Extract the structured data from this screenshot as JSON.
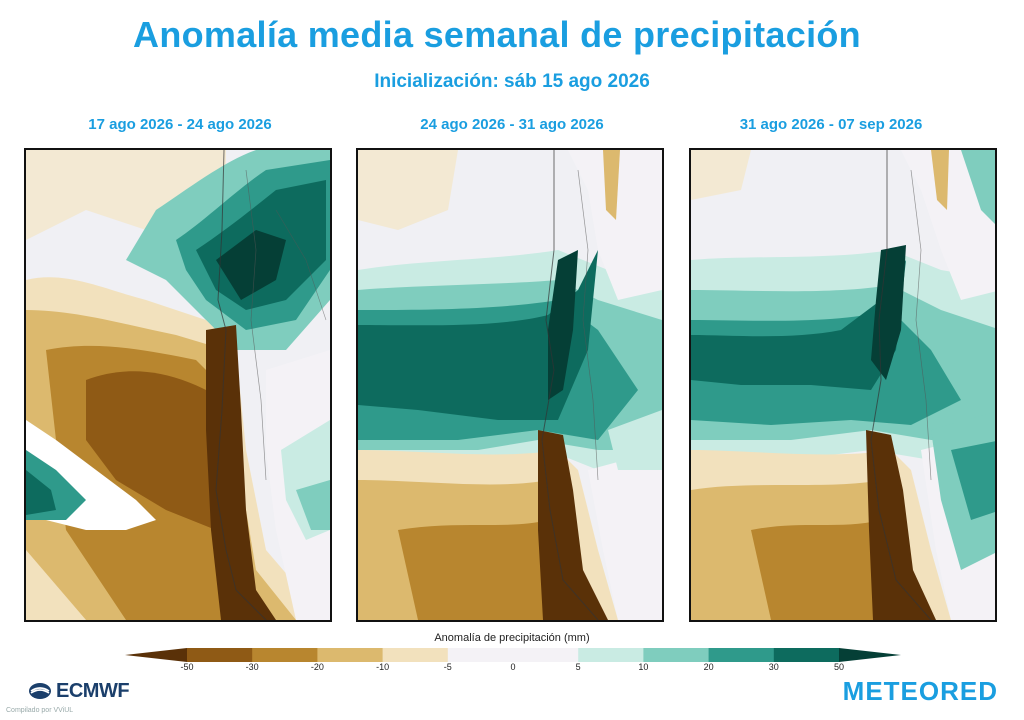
{
  "header": {
    "title": "Anomalía media semanal de precipitación",
    "subtitle": "Inicialización: sáb 15 ago 2026"
  },
  "panels": [
    {
      "label": "17 ago 2026 - 24 ago 2026"
    },
    {
      "label": "24 ago 2026 - 31 ago 2026"
    },
    {
      "label": "31 ago 2026 - 07 sep 2026"
    }
  ],
  "colorbar": {
    "title": "Anomalía de precipitación (mm)",
    "ticks": [
      "-50",
      "-30",
      "-20",
      "-10",
      "-5",
      "0",
      "5",
      "10",
      "20",
      "30",
      "50"
    ],
    "colors": [
      "#5a3108",
      "#8f5a15",
      "#b8862f",
      "#dcb96e",
      "#f2e1bd",
      "#f4f2f6",
      "#f4f2f6",
      "#c9ebe3",
      "#7fcdbe",
      "#2f9a8b",
      "#0d6b5e",
      "#053f36"
    ]
  },
  "footer": {
    "left_logo": "ECMWF",
    "left_credit": "Compilado por VViUL",
    "right_logo": "METEORED"
  },
  "icons": [
    "ecmwf-logo-icon"
  ]
}
